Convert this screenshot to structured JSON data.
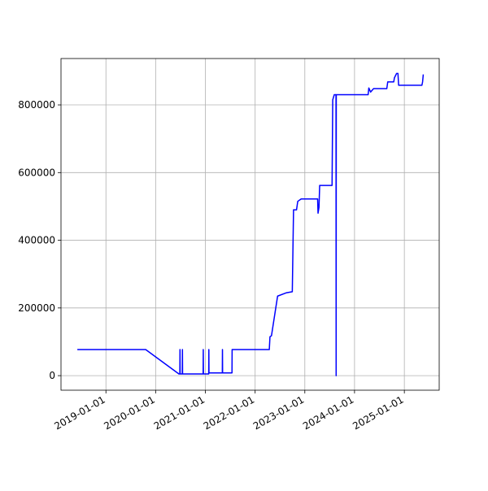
{
  "chart_data": {
    "type": "line",
    "color": "#0000ff",
    "grid": true,
    "x": [
      "2018-06-05",
      "2019-10-20",
      "2020-06-20",
      "2020-06-27",
      "2020-06-28",
      "2020-06-29",
      "2020-07-15",
      "2020-07-16",
      "2020-07-17",
      "2020-12-15",
      "2020-12-16",
      "2020-12-17",
      "2021-01-25",
      "2021-01-26",
      "2021-01-27",
      "2021-05-05",
      "2021-05-06",
      "2021-05-07",
      "2021-07-15",
      "2021-07-16",
      "2022-04-15",
      "2022-04-20",
      "2022-05-01",
      "2022-06-15",
      "2022-08-20",
      "2022-10-01",
      "2022-10-10",
      "2022-11-01",
      "2022-11-10",
      "2022-12-05",
      "2023-04-05",
      "2023-04-08",
      "2023-04-15",
      "2023-04-20",
      "2023-07-20",
      "2023-07-25",
      "2023-08-05",
      "2023-08-18",
      "2023-08-19",
      "2023-08-20",
      "2024-04-10",
      "2024-04-15",
      "2024-04-28",
      "2024-05-20",
      "2024-08-25",
      "2024-09-01",
      "2024-10-15",
      "2024-10-20",
      "2024-11-05",
      "2024-11-15",
      "2024-11-20",
      "2025-05-10",
      "2025-05-15",
      "2025-05-20"
    ],
    "values": [
      77000,
      77000,
      5000,
      5000,
      77000,
      5000,
      5000,
      77000,
      5000,
      5000,
      77000,
      5000,
      5000,
      77000,
      8000,
      8000,
      77000,
      8000,
      8000,
      77000,
      77000,
      115000,
      118000,
      235000,
      245000,
      248000,
      490000,
      490000,
      515000,
      522000,
      522000,
      480000,
      497000,
      562000,
      562000,
      815000,
      830000,
      830000,
      0,
      830000,
      830000,
      850000,
      838000,
      848000,
      848000,
      868000,
      868000,
      880000,
      893000,
      893000,
      858000,
      858000,
      868000,
      890000
    ],
    "xlim": [
      "2018-02-05",
      "2025-09-14"
    ],
    "xticks": [
      "2019-01-01",
      "2020-01-01",
      "2021-01-01",
      "2022-01-01",
      "2023-01-01",
      "2024-01-01",
      "2025-01-01"
    ],
    "ylim": [
      -43000,
      937000
    ],
    "yticks": [
      0,
      200000,
      400000,
      600000,
      800000
    ]
  }
}
